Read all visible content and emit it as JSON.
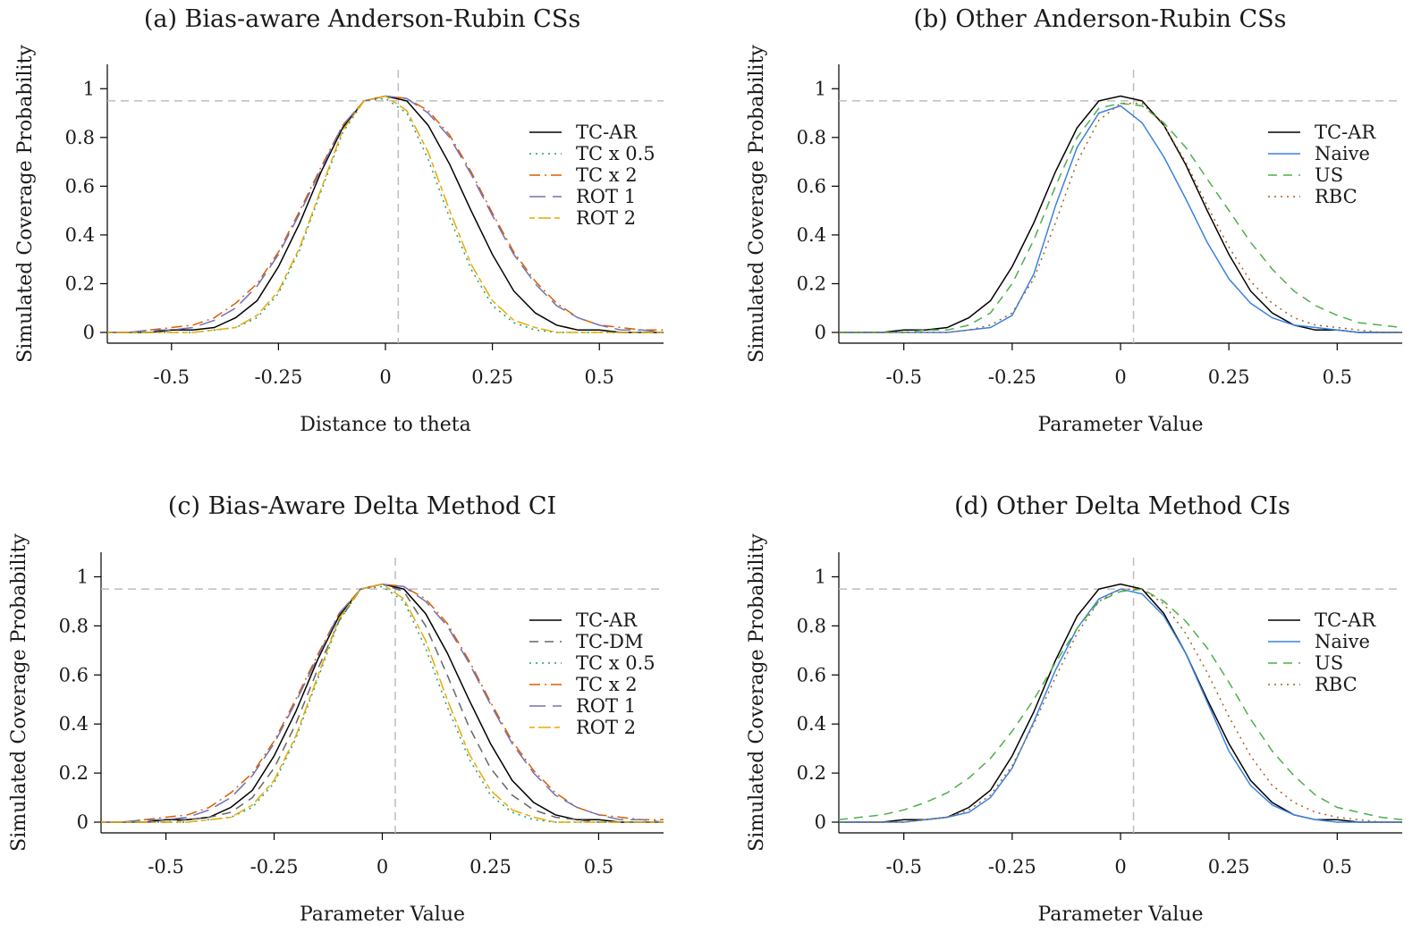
{
  "figure_titles": [
    "(a) Bias-aware Anderson-Rubin CSs",
    "(b) Other Anderson-Rubin CSs",
    "(c) Bias-Aware Delta Method CI",
    "(d) Other Delta Method CIs"
  ],
  "chart_data": [
    {
      "type": "line",
      "title": "(a) Bias-aware Anderson-Rubin CSs",
      "xlabel": "Distance to theta",
      "ylabel": "Simulated Coverage Probability",
      "xlim": [
        -0.65,
        0.65
      ],
      "ylim": [
        0,
        1.1
      ],
      "x_ticks": [
        "-0.5",
        "-0.25",
        "0",
        "0.25",
        "0.5"
      ],
      "y_ticks": [
        "0",
        "0.2",
        "0.4",
        "0.6",
        "0.8",
        "1"
      ],
      "reference_hline": 0.95,
      "reference_vline": 0.03,
      "legend_position": "right",
      "x": [
        -0.65,
        -0.6,
        -0.55,
        -0.5,
        -0.45,
        -0.4,
        -0.35,
        -0.3,
        -0.25,
        -0.2,
        -0.15,
        -0.1,
        -0.05,
        0,
        0.05,
        0.1,
        0.15,
        0.2,
        0.25,
        0.3,
        0.35,
        0.4,
        0.45,
        0.5,
        0.55,
        0.6,
        0.65
      ],
      "series": [
        {
          "name": "TC-AR",
          "color": "#000000",
          "dash": "solid",
          "values": [
            0.0,
            0.0,
            0.0,
            0.01,
            0.01,
            0.02,
            0.06,
            0.13,
            0.27,
            0.45,
            0.66,
            0.84,
            0.95,
            0.97,
            0.95,
            0.85,
            0.69,
            0.5,
            0.32,
            0.17,
            0.08,
            0.03,
            0.01,
            0.01,
            0.0,
            0.0,
            0.0
          ]
        },
        {
          "name": "TC x 0.5",
          "color": "#1b9e77",
          "dash": "dotted",
          "values": [
            0.0,
            0.0,
            0.0,
            0.0,
            0.0,
            0.01,
            0.02,
            0.06,
            0.16,
            0.34,
            0.58,
            0.82,
            0.95,
            0.96,
            0.9,
            0.71,
            0.47,
            0.26,
            0.11,
            0.04,
            0.01,
            0.0,
            0.0,
            0.0,
            0.0,
            0.0,
            0.0
          ]
        },
        {
          "name": "TC x 2",
          "color": "#d95f02",
          "dash": "dashdot",
          "values": [
            0.0,
            0.0,
            0.01,
            0.02,
            0.03,
            0.06,
            0.12,
            0.2,
            0.33,
            0.5,
            0.68,
            0.85,
            0.95,
            0.97,
            0.96,
            0.91,
            0.81,
            0.66,
            0.49,
            0.33,
            0.21,
            0.12,
            0.06,
            0.03,
            0.02,
            0.01,
            0.01
          ]
        },
        {
          "name": "ROT 1",
          "color": "#7570b3",
          "dash": "longdash",
          "values": [
            0.0,
            0.0,
            0.01,
            0.01,
            0.02,
            0.05,
            0.1,
            0.19,
            0.32,
            0.49,
            0.67,
            0.85,
            0.95,
            0.97,
            0.96,
            0.9,
            0.8,
            0.65,
            0.48,
            0.32,
            0.2,
            0.11,
            0.06,
            0.03,
            0.01,
            0.01,
            0.0
          ]
        },
        {
          "name": "ROT 2",
          "color": "#e6ab02",
          "dash": "twodash",
          "values": [
            0.0,
            0.0,
            0.0,
            0.0,
            0.0,
            0.01,
            0.02,
            0.07,
            0.17,
            0.35,
            0.59,
            0.83,
            0.95,
            0.97,
            0.91,
            0.74,
            0.5,
            0.28,
            0.13,
            0.05,
            0.02,
            0.0,
            0.0,
            0.0,
            0.0,
            0.0,
            0.0
          ]
        }
      ]
    },
    {
      "type": "line",
      "title": "(b) Other Anderson-Rubin CSs",
      "xlabel": "Parameter Value",
      "ylabel": "Simulated Coverage Probability",
      "xlim": [
        -0.65,
        0.65
      ],
      "ylim": [
        0,
        1.1
      ],
      "x_ticks": [
        "-0.5",
        "-0.25",
        "0",
        "0.25",
        "0.5"
      ],
      "y_ticks": [
        "0",
        "0.2",
        "0.4",
        "0.6",
        "0.8",
        "1"
      ],
      "reference_hline": 0.95,
      "reference_vline": 0.03,
      "legend_position": "right",
      "x": [
        -0.65,
        -0.6,
        -0.55,
        -0.5,
        -0.45,
        -0.4,
        -0.35,
        -0.3,
        -0.25,
        -0.2,
        -0.15,
        -0.1,
        -0.05,
        0,
        0.05,
        0.1,
        0.15,
        0.2,
        0.25,
        0.3,
        0.35,
        0.4,
        0.45,
        0.5,
        0.55,
        0.6,
        0.65
      ],
      "series": [
        {
          "name": "TC-AR",
          "color": "#000000",
          "dash": "solid",
          "values": [
            0.0,
            0.0,
            0.0,
            0.01,
            0.01,
            0.02,
            0.06,
            0.13,
            0.27,
            0.45,
            0.66,
            0.84,
            0.95,
            0.97,
            0.95,
            0.85,
            0.69,
            0.5,
            0.32,
            0.17,
            0.08,
            0.03,
            0.01,
            0.01,
            0.0,
            0.0,
            0.0
          ]
        },
        {
          "name": "Naive",
          "color": "#3b82e0",
          "dash": "solid",
          "values": [
            0.0,
            0.0,
            0.0,
            0.0,
            0.0,
            0.0,
            0.01,
            0.02,
            0.07,
            0.24,
            0.52,
            0.76,
            0.9,
            0.93,
            0.86,
            0.72,
            0.55,
            0.37,
            0.22,
            0.12,
            0.06,
            0.03,
            0.02,
            0.01,
            0.0,
            0.0,
            0.0
          ]
        },
        {
          "name": "US",
          "color": "#4daf4a",
          "dash": "dashed",
          "values": [
            0.0,
            0.0,
            0.0,
            0.0,
            0.01,
            0.01,
            0.03,
            0.08,
            0.2,
            0.38,
            0.6,
            0.8,
            0.92,
            0.94,
            0.93,
            0.86,
            0.76,
            0.63,
            0.5,
            0.37,
            0.26,
            0.17,
            0.11,
            0.07,
            0.04,
            0.03,
            0.02
          ]
        },
        {
          "name": "RBC",
          "color": "#a6611a",
          "dash": "dotted",
          "values": [
            0.0,
            0.0,
            0.0,
            0.0,
            0.0,
            0.0,
            0.01,
            0.03,
            0.08,
            0.22,
            0.45,
            0.7,
            0.87,
            0.94,
            0.94,
            0.85,
            0.7,
            0.52,
            0.35,
            0.21,
            0.12,
            0.06,
            0.03,
            0.02,
            0.01,
            0.0,
            0.0
          ]
        }
      ]
    },
    {
      "type": "line",
      "title": "(c) Bias-Aware Delta Method CI",
      "xlabel": "Parameter Value",
      "ylabel": "Simulated Coverage Probability",
      "xlim": [
        -0.65,
        0.65
      ],
      "ylim": [
        0,
        1.1
      ],
      "x_ticks": [
        "-0.5",
        "-0.25",
        "0",
        "0.25",
        "0.5"
      ],
      "y_ticks": [
        "0",
        "0.2",
        "0.4",
        "0.6",
        "0.8",
        "1"
      ],
      "reference_hline": 0.95,
      "reference_vline": 0.03,
      "legend_position": "right",
      "x": [
        -0.65,
        -0.6,
        -0.55,
        -0.5,
        -0.45,
        -0.4,
        -0.35,
        -0.3,
        -0.25,
        -0.2,
        -0.15,
        -0.1,
        -0.05,
        0,
        0.05,
        0.1,
        0.15,
        0.2,
        0.25,
        0.3,
        0.35,
        0.4,
        0.45,
        0.5,
        0.55,
        0.6,
        0.65
      ],
      "series": [
        {
          "name": "TC-AR",
          "color": "#000000",
          "dash": "solid",
          "values": [
            0.0,
            0.0,
            0.0,
            0.01,
            0.01,
            0.02,
            0.06,
            0.13,
            0.27,
            0.45,
            0.66,
            0.84,
            0.95,
            0.97,
            0.95,
            0.85,
            0.69,
            0.5,
            0.32,
            0.17,
            0.08,
            0.03,
            0.01,
            0.01,
            0.0,
            0.0,
            0.0
          ]
        },
        {
          "name": "TC-DM",
          "color": "#666666",
          "dash": "dashed",
          "values": [
            0.0,
            0.0,
            0.0,
            0.0,
            0.01,
            0.02,
            0.04,
            0.1,
            0.22,
            0.4,
            0.62,
            0.82,
            0.95,
            0.97,
            0.94,
            0.8,
            0.6,
            0.39,
            0.22,
            0.11,
            0.05,
            0.02,
            0.01,
            0.0,
            0.0,
            0.0,
            0.0
          ]
        },
        {
          "name": "TC x 0.5",
          "color": "#1b9e77",
          "dash": "dotted",
          "values": [
            0.0,
            0.0,
            0.0,
            0.0,
            0.0,
            0.01,
            0.02,
            0.06,
            0.16,
            0.34,
            0.58,
            0.82,
            0.95,
            0.96,
            0.9,
            0.71,
            0.47,
            0.26,
            0.11,
            0.04,
            0.01,
            0.0,
            0.0,
            0.0,
            0.0,
            0.0,
            0.0
          ]
        },
        {
          "name": "TC x 2",
          "color": "#d95f02",
          "dash": "dashdot",
          "values": [
            0.0,
            0.0,
            0.01,
            0.02,
            0.03,
            0.06,
            0.12,
            0.2,
            0.33,
            0.5,
            0.68,
            0.85,
            0.95,
            0.97,
            0.96,
            0.91,
            0.81,
            0.66,
            0.49,
            0.33,
            0.21,
            0.12,
            0.06,
            0.03,
            0.02,
            0.01,
            0.01
          ]
        },
        {
          "name": "ROT 1",
          "color": "#7570b3",
          "dash": "longdash",
          "values": [
            0.0,
            0.0,
            0.01,
            0.01,
            0.02,
            0.05,
            0.1,
            0.19,
            0.32,
            0.49,
            0.67,
            0.85,
            0.95,
            0.97,
            0.96,
            0.9,
            0.8,
            0.65,
            0.48,
            0.32,
            0.2,
            0.11,
            0.06,
            0.03,
            0.01,
            0.01,
            0.0
          ]
        },
        {
          "name": "ROT 2",
          "color": "#e6ab02",
          "dash": "twodash",
          "values": [
            0.0,
            0.0,
            0.0,
            0.0,
            0.0,
            0.01,
            0.02,
            0.07,
            0.17,
            0.35,
            0.59,
            0.83,
            0.95,
            0.97,
            0.91,
            0.74,
            0.5,
            0.28,
            0.13,
            0.05,
            0.02,
            0.0,
            0.0,
            0.0,
            0.0,
            0.0,
            0.0
          ]
        }
      ]
    },
    {
      "type": "line",
      "title": "(d) Other Delta Method CIs",
      "xlabel": "Parameter Value",
      "ylabel": "Simulated Coverage Probability",
      "xlim": [
        -0.65,
        0.65
      ],
      "ylim": [
        0,
        1.1
      ],
      "x_ticks": [
        "-0.5",
        "-0.25",
        "0",
        "0.25",
        "0.5"
      ],
      "y_ticks": [
        "0",
        "0.2",
        "0.4",
        "0.6",
        "0.8",
        "1"
      ],
      "reference_hline": 0.95,
      "reference_vline": 0.03,
      "legend_position": "right",
      "x": [
        -0.65,
        -0.6,
        -0.55,
        -0.5,
        -0.45,
        -0.4,
        -0.35,
        -0.3,
        -0.25,
        -0.2,
        -0.15,
        -0.1,
        -0.05,
        0,
        0.05,
        0.1,
        0.15,
        0.2,
        0.25,
        0.3,
        0.35,
        0.4,
        0.45,
        0.5,
        0.55,
        0.6,
        0.65
      ],
      "series": [
        {
          "name": "TC-AR",
          "color": "#000000",
          "dash": "solid",
          "values": [
            0.0,
            0.0,
            0.0,
            0.01,
            0.01,
            0.02,
            0.06,
            0.13,
            0.27,
            0.45,
            0.66,
            0.84,
            0.95,
            0.97,
            0.95,
            0.85,
            0.69,
            0.5,
            0.32,
            0.17,
            0.08,
            0.03,
            0.01,
            0.01,
            0.0,
            0.0,
            0.0
          ]
        },
        {
          "name": "Naive",
          "color": "#3b82e0",
          "dash": "solid",
          "values": [
            0.0,
            0.0,
            0.0,
            0.0,
            0.01,
            0.02,
            0.04,
            0.1,
            0.22,
            0.41,
            0.62,
            0.79,
            0.91,
            0.95,
            0.93,
            0.84,
            0.69,
            0.49,
            0.29,
            0.15,
            0.07,
            0.03,
            0.01,
            0.0,
            0.0,
            0.0,
            0.0
          ]
        },
        {
          "name": "US",
          "color": "#4daf4a",
          "dash": "dashed",
          "values": [
            0.01,
            0.02,
            0.03,
            0.05,
            0.08,
            0.12,
            0.18,
            0.26,
            0.37,
            0.5,
            0.65,
            0.79,
            0.9,
            0.94,
            0.95,
            0.9,
            0.82,
            0.71,
            0.57,
            0.42,
            0.29,
            0.19,
            0.11,
            0.06,
            0.04,
            0.02,
            0.01
          ]
        },
        {
          "name": "RBC",
          "color": "#a6611a",
          "dash": "dotted",
          "values": [
            0.0,
            0.0,
            0.0,
            0.0,
            0.01,
            0.02,
            0.05,
            0.11,
            0.23,
            0.4,
            0.59,
            0.77,
            0.9,
            0.95,
            0.95,
            0.89,
            0.77,
            0.61,
            0.43,
            0.27,
            0.15,
            0.08,
            0.04,
            0.02,
            0.01,
            0.0,
            0.0
          ]
        }
      ]
    }
  ]
}
